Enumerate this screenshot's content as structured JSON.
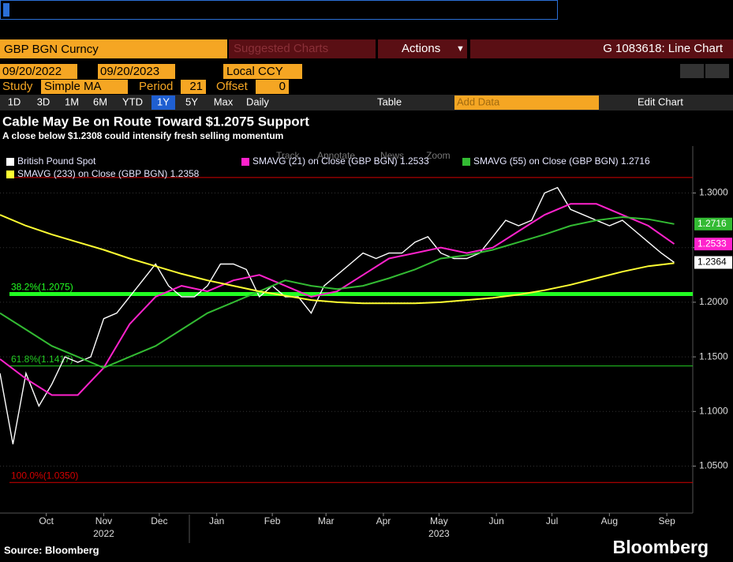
{
  "toolbar": {
    "security": "GBP BGN Curncy",
    "suggested": "Suggested Charts",
    "actions": "Actions",
    "function": "G 1083618: Line Chart",
    "start_date": "09/20/2022",
    "end_date": "09/20/2023",
    "currency": "Local CCY",
    "study_label": "Study",
    "study": "Simple MA",
    "period_label": "Period",
    "period": "21",
    "offset_label": "Offset",
    "offset": "0",
    "ranges": [
      "1D",
      "3D",
      "1M",
      "6M",
      "YTD",
      "1Y",
      "5Y",
      "Max"
    ],
    "active_range": 5,
    "frequency": "Daily",
    "table": "Table",
    "add_data": "Add Data",
    "edit_chart": "Edit Chart",
    "chart_tools": [
      "Track",
      "Annotate",
      "News",
      "Zoom"
    ]
  },
  "chart_data": {
    "type": "line",
    "title": "Cable May Be on Route Toward $1.2075 Support",
    "subtitle": "A close below $1.2308 could intensify fresh selling momentum",
    "xlim": [
      0,
      374
    ],
    "ylim": [
      1.007,
      1.343
    ],
    "xticks": [
      {
        "value": 25,
        "label": "Oct"
      },
      {
        "value": 56,
        "label": "Nov"
      },
      {
        "value": 86,
        "label": "Dec"
      },
      {
        "value": 117,
        "label": "Jan"
      },
      {
        "value": 147,
        "label": "Feb"
      },
      {
        "value": 176,
        "label": "Mar"
      },
      {
        "value": 207,
        "label": "Apr"
      },
      {
        "value": 237,
        "label": "May"
      },
      {
        "value": 268,
        "label": "Jun"
      },
      {
        "value": 298,
        "label": "Jul"
      },
      {
        "value": 329,
        "label": "Aug"
      },
      {
        "value": 360,
        "label": "Sep"
      }
    ],
    "years": [
      {
        "value": 56,
        "label": "2022"
      },
      {
        "value": 237,
        "label": "2023"
      }
    ],
    "yticks": [
      {
        "value": 1.05,
        "label": "1.0500"
      },
      {
        "value": 1.1,
        "label": "1.1000"
      },
      {
        "value": 1.15,
        "label": "1.1500"
      },
      {
        "value": 1.2,
        "label": "1.2000"
      },
      {
        "value": 1.25,
        "label": "1.2500"
      },
      {
        "value": 1.3,
        "label": "1.3000"
      }
    ],
    "levels": [
      {
        "value": 1.3142,
        "color": "#d40000",
        "width": 1
      },
      {
        "value": 1.2075,
        "label": "38.2%(1.2075)",
        "color": "#22ff22",
        "width": 5
      },
      {
        "value": 1.1417,
        "label": "61.8%(1.1417)",
        "color": "#22cc22",
        "width": 1
      },
      {
        "value": 1.035,
        "label": "100.0%(1.0350)",
        "color": "#d40000",
        "width": 1
      }
    ],
    "series": [
      {
        "name": "British Pound Spot",
        "color": "#ffffff",
        "width": 1.4,
        "value_box": true,
        "legend_value": false,
        "x": [
          0,
          7,
          14,
          21,
          28,
          35,
          42,
          49,
          56,
          63,
          70,
          77,
          84,
          91,
          98,
          105,
          112,
          119,
          126,
          133,
          140,
          147,
          154,
          161,
          168,
          175,
          182,
          189,
          196,
          203,
          210,
          217,
          224,
          231,
          238,
          245,
          252,
          259,
          266,
          273,
          280,
          287,
          294,
          301,
          308,
          315,
          322,
          329,
          336,
          343,
          350,
          357,
          364
        ],
        "values": [
          1.135,
          1.07,
          1.135,
          1.105,
          1.125,
          1.15,
          1.145,
          1.15,
          1.185,
          1.19,
          1.205,
          1.22,
          1.235,
          1.215,
          1.205,
          1.205,
          1.215,
          1.235,
          1.235,
          1.23,
          1.205,
          1.215,
          1.205,
          1.205,
          1.19,
          1.215,
          1.225,
          1.235,
          1.245,
          1.24,
          1.245,
          1.245,
          1.255,
          1.26,
          1.245,
          1.24,
          1.24,
          1.245,
          1.26,
          1.275,
          1.27,
          1.275,
          1.3,
          1.305,
          1.285,
          1.28,
          1.275,
          1.27,
          1.275,
          1.265,
          1.255,
          1.245,
          1.2364
        ]
      },
      {
        "name": "SMAVG (21)  on Close (GBP BGN)",
        "color": "#ff22cc",
        "width": 2,
        "value_box": true,
        "legend_value": true,
        "x": [
          0,
          14,
          28,
          42,
          56,
          70,
          84,
          98,
          112,
          126,
          140,
          154,
          168,
          182,
          196,
          210,
          224,
          238,
          252,
          266,
          280,
          294,
          308,
          322,
          336,
          350,
          364
        ],
        "values": [
          1.148,
          1.13,
          1.115,
          1.115,
          1.14,
          1.18,
          1.205,
          1.215,
          1.21,
          1.22,
          1.225,
          1.215,
          1.205,
          1.21,
          1.225,
          1.24,
          1.245,
          1.25,
          1.245,
          1.25,
          1.265,
          1.28,
          1.29,
          1.29,
          1.28,
          1.27,
          1.2533
        ]
      },
      {
        "name": "SMAVG (55)  on Close (GBP BGN)",
        "color": "#33bb33",
        "width": 2,
        "value_box": true,
        "legend_value": true,
        "x": [
          0,
          14,
          28,
          42,
          56,
          70,
          84,
          98,
          112,
          126,
          140,
          154,
          168,
          182,
          196,
          210,
          224,
          238,
          252,
          266,
          280,
          294,
          308,
          322,
          336,
          350,
          364
        ],
        "values": [
          1.19,
          1.175,
          1.16,
          1.15,
          1.14,
          1.15,
          1.16,
          1.175,
          1.19,
          1.2,
          1.21,
          1.22,
          1.215,
          1.212,
          1.215,
          1.222,
          1.23,
          1.24,
          1.243,
          1.248,
          1.255,
          1.262,
          1.27,
          1.275,
          1.278,
          1.276,
          1.2716
        ]
      },
      {
        "name": "SMAVG (233)  on Close (GBP BGN)",
        "color": "#ffff33",
        "width": 2,
        "value_box": false,
        "legend_value": true,
        "x": [
          0,
          14,
          28,
          42,
          56,
          70,
          84,
          98,
          112,
          126,
          140,
          154,
          168,
          182,
          196,
          210,
          224,
          238,
          252,
          266,
          280,
          294,
          308,
          322,
          336,
          350,
          364
        ],
        "values": [
          1.28,
          1.27,
          1.262,
          1.255,
          1.248,
          1.24,
          1.233,
          1.226,
          1.22,
          1.215,
          1.21,
          1.206,
          1.202,
          1.2,
          1.199,
          1.199,
          1.199,
          1.2,
          1.202,
          1.204,
          1.207,
          1.211,
          1.216,
          1.222,
          1.228,
          1.233,
          1.2358
        ]
      }
    ]
  },
  "footer": {
    "source": "Source: Bloomberg",
    "brand": "Bloomberg"
  }
}
